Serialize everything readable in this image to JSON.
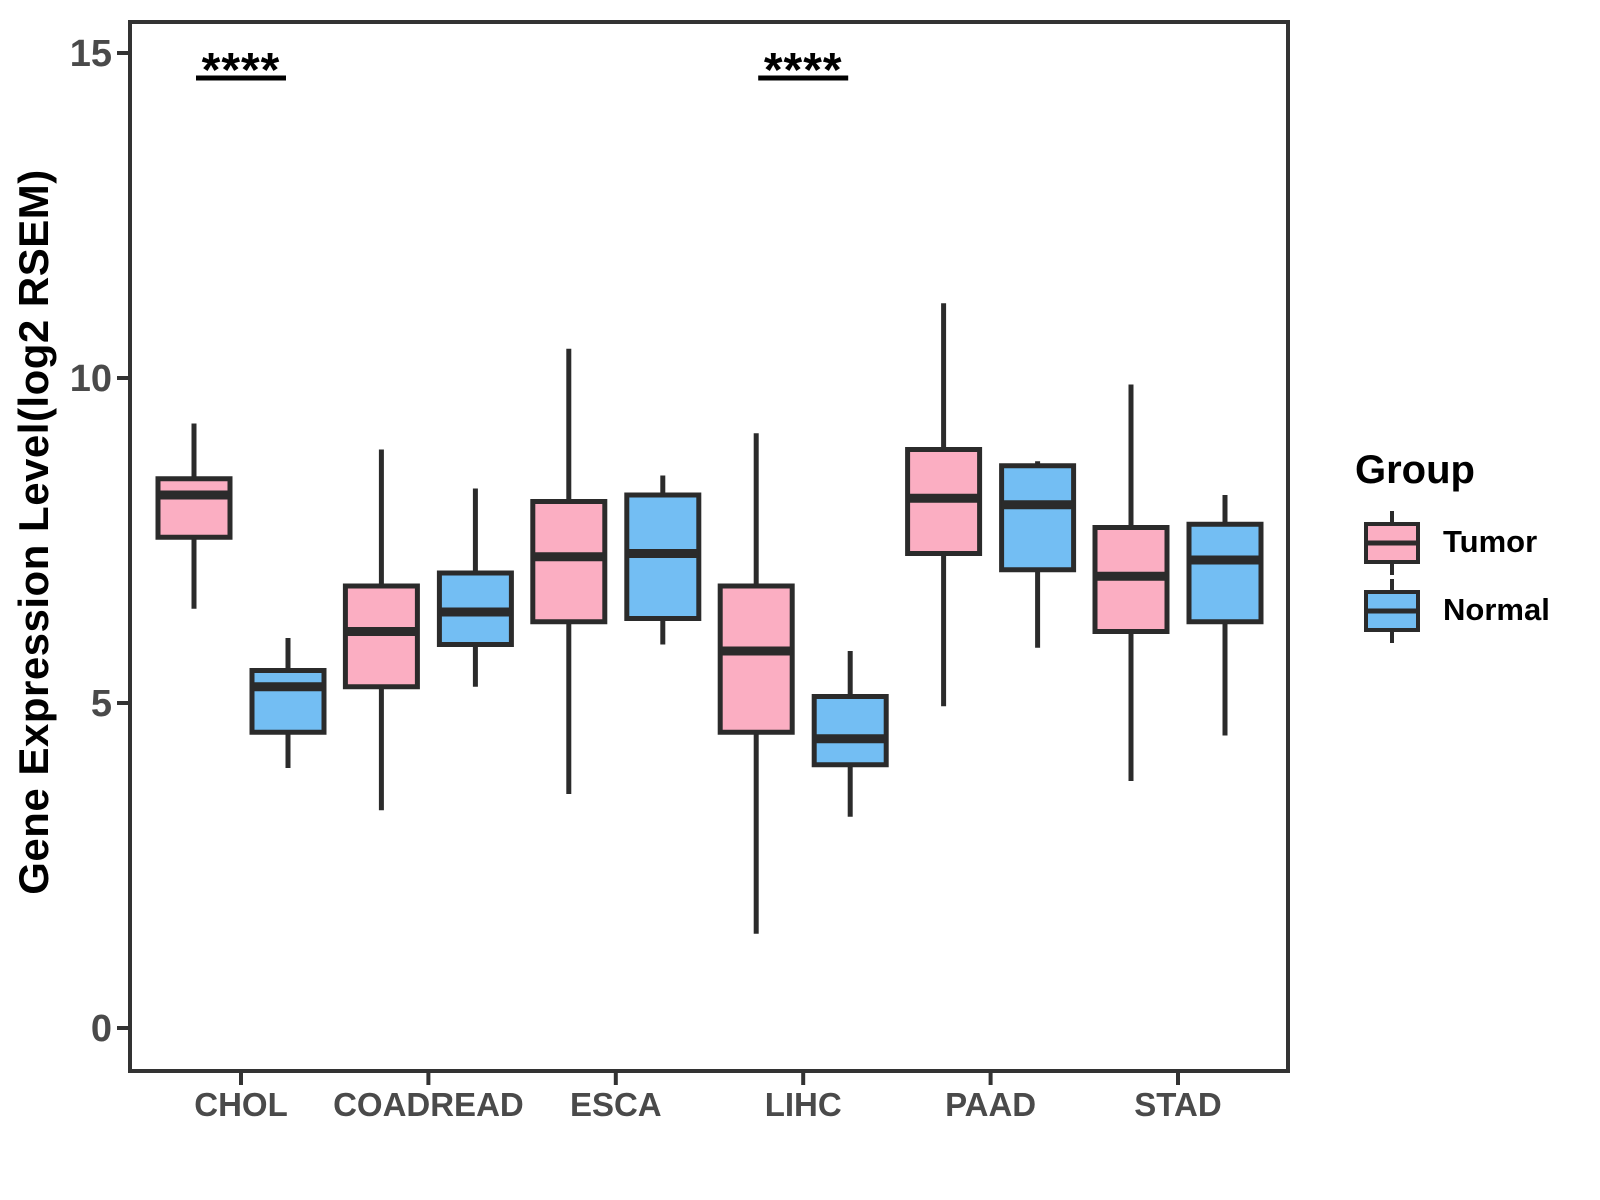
{
  "chart_data": {
    "type": "grouped_boxplot",
    "title": "",
    "xlabel": "",
    "ylabel": "Gene Expression Level(log2 RSEM)",
    "categories": [
      "CHOL",
      "COADREAD",
      "ESCA",
      "LIHC",
      "PAAD",
      "STAD"
    ],
    "y_ticks": [
      0,
      5,
      10,
      15
    ],
    "ylim": [
      -0.7,
      15.5
    ],
    "grid": "off",
    "legend": {
      "title": "Group",
      "position": "right",
      "entries": [
        {
          "name": "Tumor",
          "color": "#FBAEC2"
        },
        {
          "name": "Normal",
          "color": "#73BEF3"
        }
      ]
    },
    "series": [
      {
        "name": "Tumor",
        "color": "#FBAEC2",
        "boxes": [
          {
            "category": "CHOL",
            "low": 6.45,
            "q1": 7.55,
            "median": 8.2,
            "q3": 8.45,
            "high": 9.3
          },
          {
            "category": "COADREAD",
            "low": 3.35,
            "q1": 5.25,
            "median": 6.1,
            "q3": 6.8,
            "high": 8.9
          },
          {
            "category": "ESCA",
            "low": 3.6,
            "q1": 6.25,
            "median": 7.25,
            "q3": 8.1,
            "high": 10.45
          },
          {
            "category": "LIHC",
            "low": 1.45,
            "q1": 4.55,
            "median": 5.8,
            "q3": 6.8,
            "high": 9.15
          },
          {
            "category": "PAAD",
            "low": 4.95,
            "q1": 7.3,
            "median": 8.15,
            "q3": 8.9,
            "high": 11.15
          },
          {
            "category": "STAD",
            "low": 3.8,
            "q1": 6.1,
            "median": 6.95,
            "q3": 7.7,
            "high": 9.9
          }
        ]
      },
      {
        "name": "Normal",
        "color": "#73BEF3",
        "boxes": [
          {
            "category": "CHOL",
            "low": 4.0,
            "q1": 4.55,
            "median": 5.25,
            "q3": 5.5,
            "high": 6.0
          },
          {
            "category": "COADREAD",
            "low": 5.25,
            "q1": 5.9,
            "median": 6.4,
            "q3": 7.0,
            "high": 8.3
          },
          {
            "category": "ESCA",
            "low": 5.9,
            "q1": 6.3,
            "median": 7.3,
            "q3": 8.2,
            "high": 8.5
          },
          {
            "category": "LIHC",
            "low": 3.25,
            "q1": 4.05,
            "median": 4.45,
            "q3": 5.1,
            "high": 5.8
          },
          {
            "category": "PAAD",
            "low": 5.85,
            "q1": 7.05,
            "median": 8.05,
            "q3": 8.65,
            "high": 8.72
          },
          {
            "category": "STAD",
            "low": 4.5,
            "q1": 6.25,
            "median": 7.2,
            "q3": 7.75,
            "high": 8.2
          }
        ]
      }
    ],
    "significance": [
      {
        "category": "CHOL",
        "label": "****"
      },
      {
        "category": "LIHC",
        "label": "****"
      }
    ],
    "style": {
      "background": "#FFFFFF",
      "box_border": "#2B2B2B",
      "axis_color": "#333333",
      "tick_label_color": "#4A4A4A",
      "text_color": "#000000"
    }
  }
}
